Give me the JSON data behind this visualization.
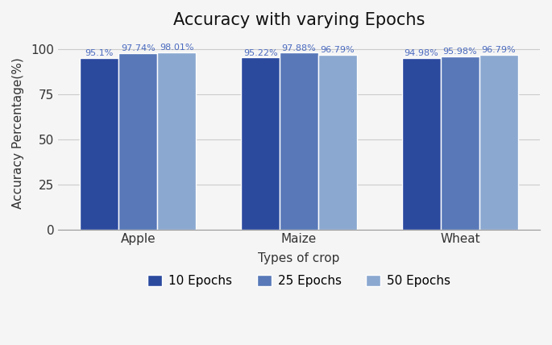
{
  "title": "Accuracy with varying Epochs",
  "xlabel": "Types of crop",
  "ylabel": "Accuracy Percentage(%)",
  "categories": [
    "Apple",
    "Maize",
    "Wheat"
  ],
  "epochs": [
    "10 Epochs",
    "25 Epochs",
    "50 Epochs"
  ],
  "values": {
    "10 Epochs": [
      95.1,
      95.22,
      94.98
    ],
    "25 Epochs": [
      97.74,
      97.88,
      95.98
    ],
    "50 Epochs": [
      98.01,
      96.79,
      96.79
    ]
  },
  "labels": {
    "10 Epochs": [
      "95.1%",
      "95.22%",
      "94.98%"
    ],
    "25 Epochs": [
      "97.74%",
      "97.88%",
      "95.98%"
    ],
    "50 Epochs": [
      "98.01%",
      "96.79%",
      "96.79%"
    ]
  },
  "colors": {
    "10 Epochs": "#2b4a9e",
    "25 Epochs": "#5878b8",
    "50 Epochs": "#8ba8d0"
  },
  "ylim": [
    0,
    107
  ],
  "yticks": [
    0,
    25,
    50,
    75,
    100
  ],
  "bar_width": 0.24,
  "annotation_color": "#4a6abf",
  "background_color": "#f5f5f5",
  "title_fontsize": 15,
  "label_fontsize": 11,
  "tick_fontsize": 11,
  "annotation_fontsize": 8.0
}
